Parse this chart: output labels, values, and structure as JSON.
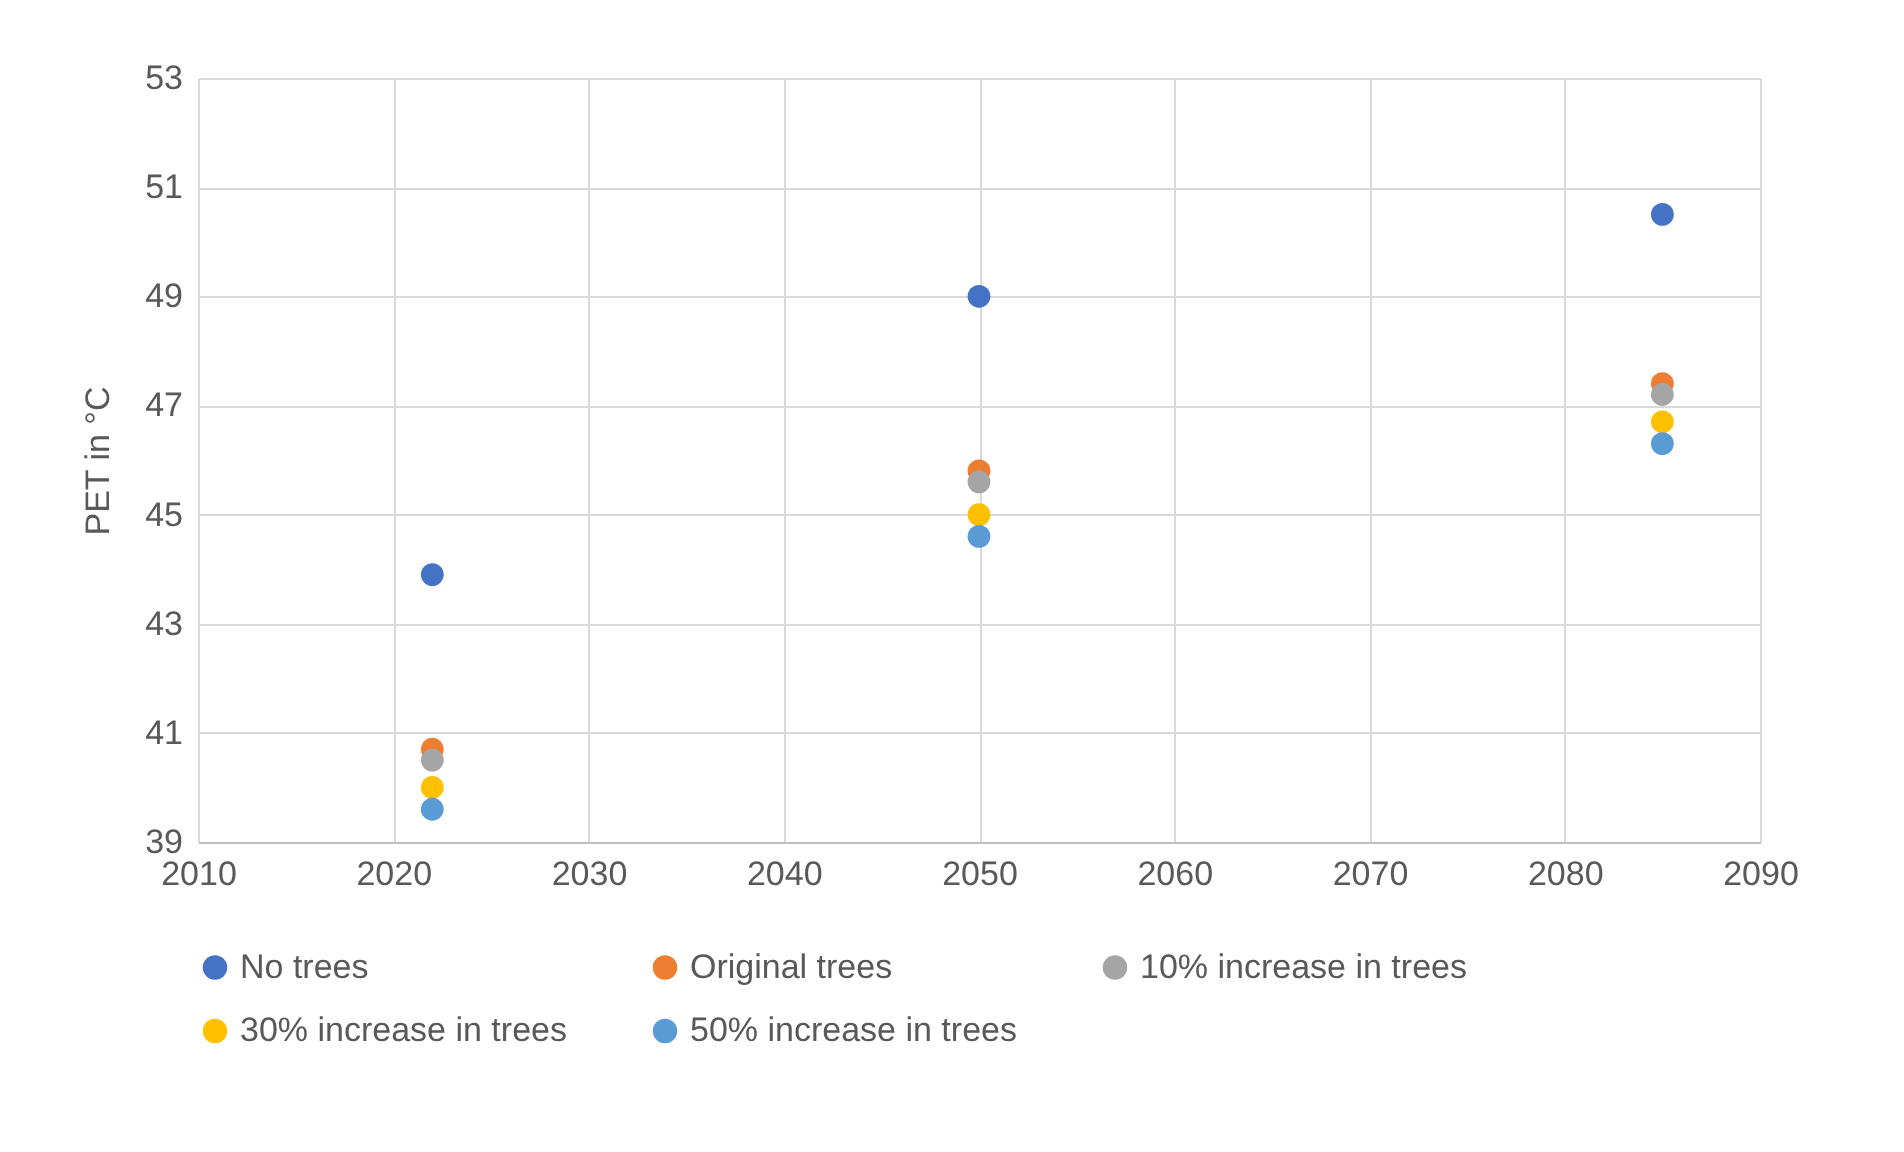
{
  "chart_data": {
    "type": "scatter",
    "ylabel": "PET in °C",
    "x": [
      2022,
      2050,
      2085
    ],
    "series": [
      {
        "name": "No trees",
        "color": "#4472c4",
        "values": [
          43.9,
          49.0,
          50.5
        ]
      },
      {
        "name": "Original trees",
        "color": "#ed7d31",
        "values": [
          40.7,
          45.8,
          47.4
        ]
      },
      {
        "name": "10% increase in trees",
        "color": "#a5a5a5",
        "values": [
          40.5,
          45.6,
          47.2
        ]
      },
      {
        "name": "30% increase in trees",
        "color": "#ffc000",
        "values": [
          40.0,
          45.0,
          46.7
        ]
      },
      {
        "name": "50% increase in trees",
        "color": "#5b9bd5",
        "values": [
          39.6,
          44.6,
          46.3
        ]
      }
    ],
    "xlim": [
      2010,
      2090
    ],
    "xticks": [
      2010,
      2020,
      2030,
      2040,
      2050,
      2060,
      2070,
      2080,
      2090
    ],
    "ylim": [
      39,
      53
    ],
    "yticks": [
      39,
      41,
      43,
      45,
      47,
      49,
      51,
      53
    ],
    "grid": true,
    "legend": "bottom",
    "marker": "circle"
  }
}
